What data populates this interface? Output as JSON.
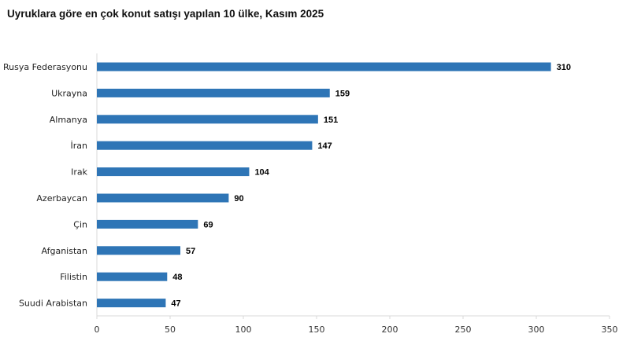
{
  "chart_data": {
    "type": "bar",
    "orientation": "horizontal",
    "title": "Uyruklara göre en çok konut satışı yapılan 10 ülke, Kasım 2025",
    "categories": [
      "Rusya Federasyonu",
      "Ukrayna",
      "Almanya",
      "İran",
      "Irak",
      "Azerbaycan",
      "Çin",
      "Afganistan",
      "Filistin",
      "Suudi Arabistan"
    ],
    "values": [
      310,
      159,
      151,
      147,
      104,
      90,
      69,
      57,
      48,
      47
    ],
    "xlim": [
      0,
      350
    ],
    "xticks": [
      "0",
      "50",
      "100",
      "150",
      "200",
      "250",
      "300",
      "350"
    ],
    "xlabel": "",
    "ylabel": "",
    "grid": false,
    "legend": "none",
    "bar_color": "#2e75b6",
    "axis_color": "#d9d9d9"
  }
}
